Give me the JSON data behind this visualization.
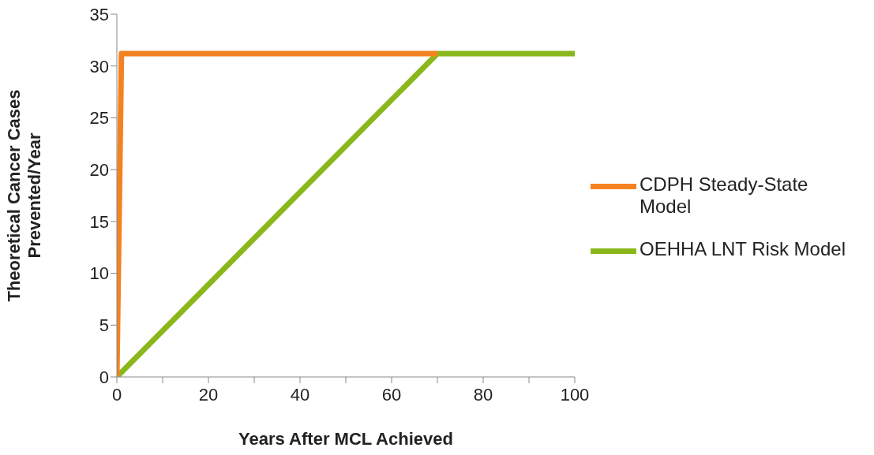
{
  "chart_data": {
    "type": "line",
    "xlabel": "Years After MCL Achieved",
    "ylabel": "Theoretical Cancer Cases Prevented/Year",
    "xlim": [
      0,
      100
    ],
    "xticks": [
      0,
      {
        "value": 10,
        "label": null
      },
      20,
      {
        "value": 30,
        "label": null
      },
      40,
      {
        "value": 50,
        "label": null
      },
      60,
      {
        "value": 70,
        "label": null
      },
      80,
      {
        "value": 90,
        "label": null
      },
      100
    ],
    "ylim": [
      0,
      35
    ],
    "yticks": [
      0,
      5,
      10,
      15,
      20,
      25,
      30,
      35
    ],
    "series": [
      {
        "name": "OEHHA LNT Risk Model",
        "color": "#8ab81c",
        "x": [
          0,
          70,
          100
        ],
        "values": [
          0,
          31.2,
          31.2
        ]
      },
      {
        "name": "CDPH Steady-State Model",
        "color": "#f58220",
        "x": [
          0,
          1,
          70
        ],
        "values": [
          0,
          31.2,
          31.2
        ]
      }
    ],
    "legend": "right",
    "grid": false,
    "marker": "none",
    "line_style": "solid"
  }
}
